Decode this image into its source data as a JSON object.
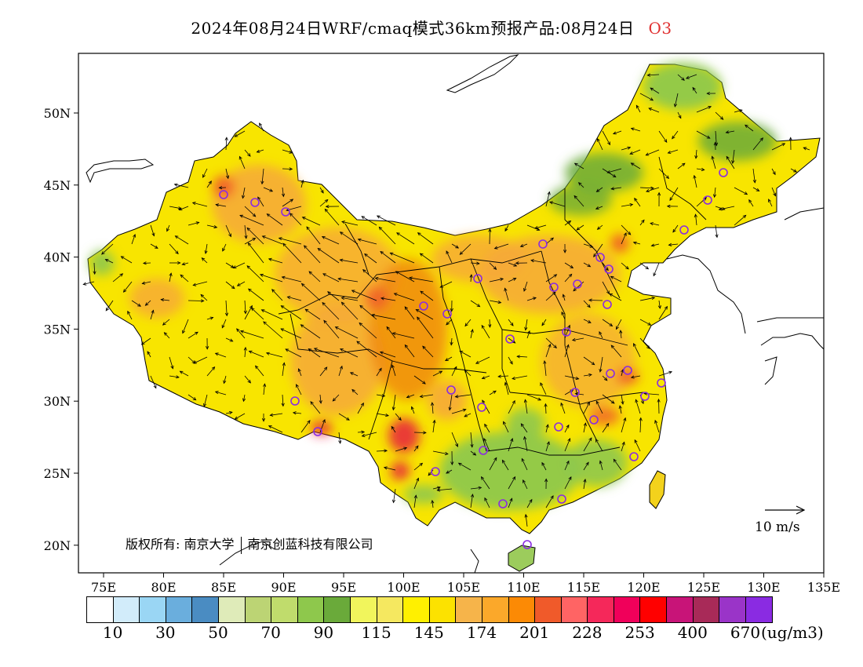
{
  "title": {
    "main": "2024年08月24日WRF/cmaq模式36km预报产品:08月24日",
    "pollutant": "O3"
  },
  "map": {
    "lon_labels": [
      "75E",
      "80E",
      "85E",
      "90E",
      "95E",
      "100E",
      "105E",
      "110E",
      "115E",
      "120E",
      "125E",
      "130E",
      "135E"
    ],
    "lat_labels": [
      "50N",
      "45N",
      "40N",
      "35N",
      "30N",
      "25N",
      "20N"
    ],
    "copyright": {
      "prefix": "版权所有:",
      "org1": "南京大学",
      "org2": "南京创蓝科技有限公司"
    },
    "wind_reference": {
      "label": "10 m/s",
      "speed": 10
    },
    "colors": {
      "low_green": "#6aaa3a",
      "mid_yellow": "#fff000",
      "high_orange": "#f6a838",
      "peak_red": "#e8283c",
      "station_marker": "#8a2be2"
    }
  },
  "colorbar": {
    "colors": [
      "#ffffff",
      "#d2ecfa",
      "#9ad6f4",
      "#6aaedd",
      "#4a8cc2",
      "#dfebb9",
      "#bcd474",
      "#c0dc6c",
      "#8ec84c",
      "#6aaa3a",
      "#f1f55c",
      "#f5e860",
      "#fff000",
      "#fce200",
      "#f6b44a",
      "#fba82a",
      "#fc8a05",
      "#f05a2a",
      "#ff6464",
      "#f5285a",
      "#f0005a",
      "#ff0000",
      "#c81478",
      "#a82a58",
      "#9a34c8",
      "#8a2be2"
    ],
    "labels": [
      "10",
      "30",
      "50",
      "70",
      "90",
      "115",
      "145",
      "174",
      "201",
      "228",
      "253",
      "400",
      "670"
    ],
    "unit": "(ug/m3)"
  }
}
